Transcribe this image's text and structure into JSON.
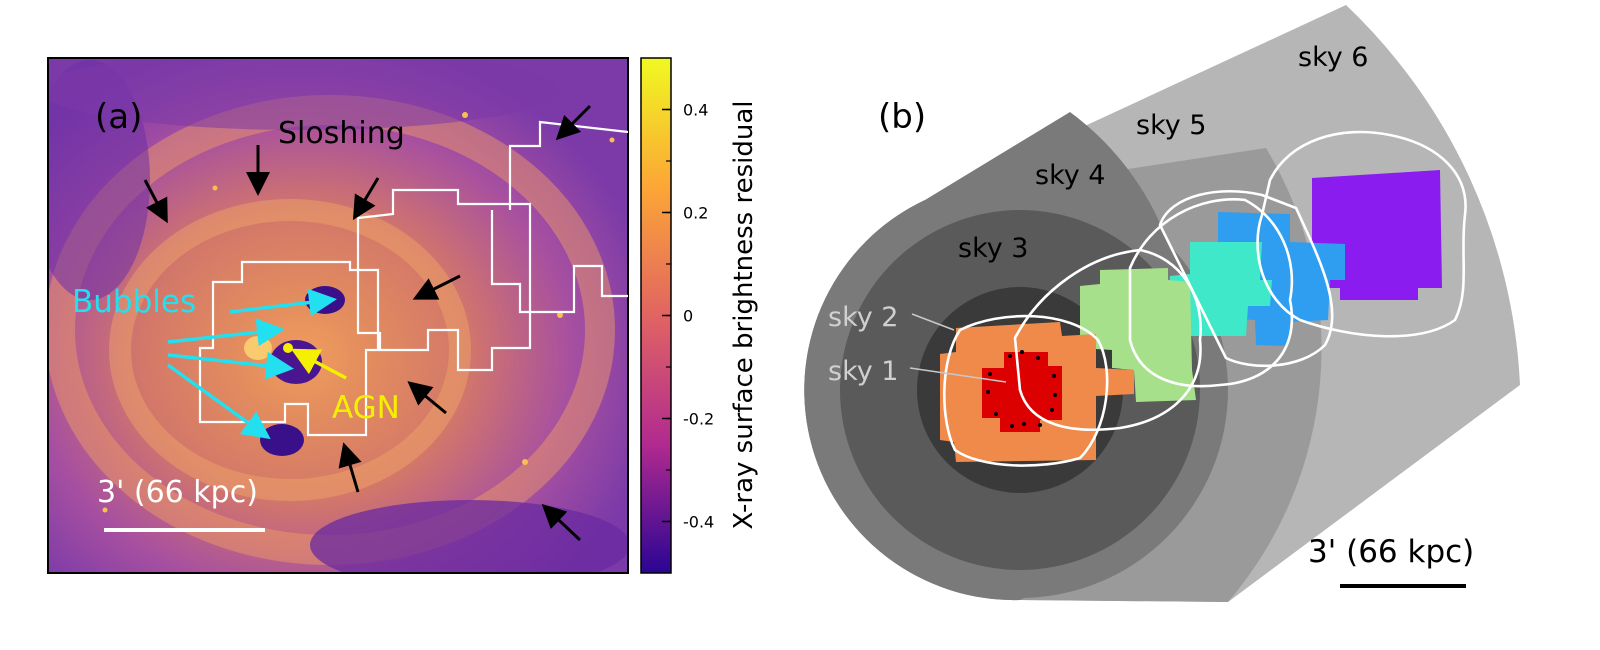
{
  "panel_a": {
    "label": "(a)",
    "sloshing_label": "Sloshing",
    "bubbles_label": "Bubbles",
    "agn_label": "AGN",
    "scale_label": "3' (66 kpc)",
    "colorbar": {
      "title": "X-ray surface brightness residual",
      "ticks": [
        "0.4",
        "0.2",
        "0",
        "-0.2",
        "-0.4"
      ],
      "tick_values": [
        0.4,
        0.2,
        0,
        -0.2,
        -0.4
      ],
      "range": [
        -0.5,
        0.5
      ]
    }
  },
  "panel_b": {
    "label": "(b)",
    "regions": [
      "sky 1",
      "sky 2",
      "sky 3",
      "sky 4",
      "sky 5",
      "sky 6"
    ],
    "scale_label": "3' (66 kpc)"
  },
  "colors": {
    "bubbles": "#22e0f0",
    "agn": "#f5f000",
    "pointing_colors": [
      "#dd0000",
      "#f08a4b",
      "#a6e08a",
      "#3fe8c8",
      "#2f9ef0",
      "#8a1cf0"
    ],
    "sky_shades": [
      "#3a3a3a",
      "#5a5a5a",
      "#7a7a7a",
      "#9a9a9a",
      "#b6b6b6"
    ]
  }
}
